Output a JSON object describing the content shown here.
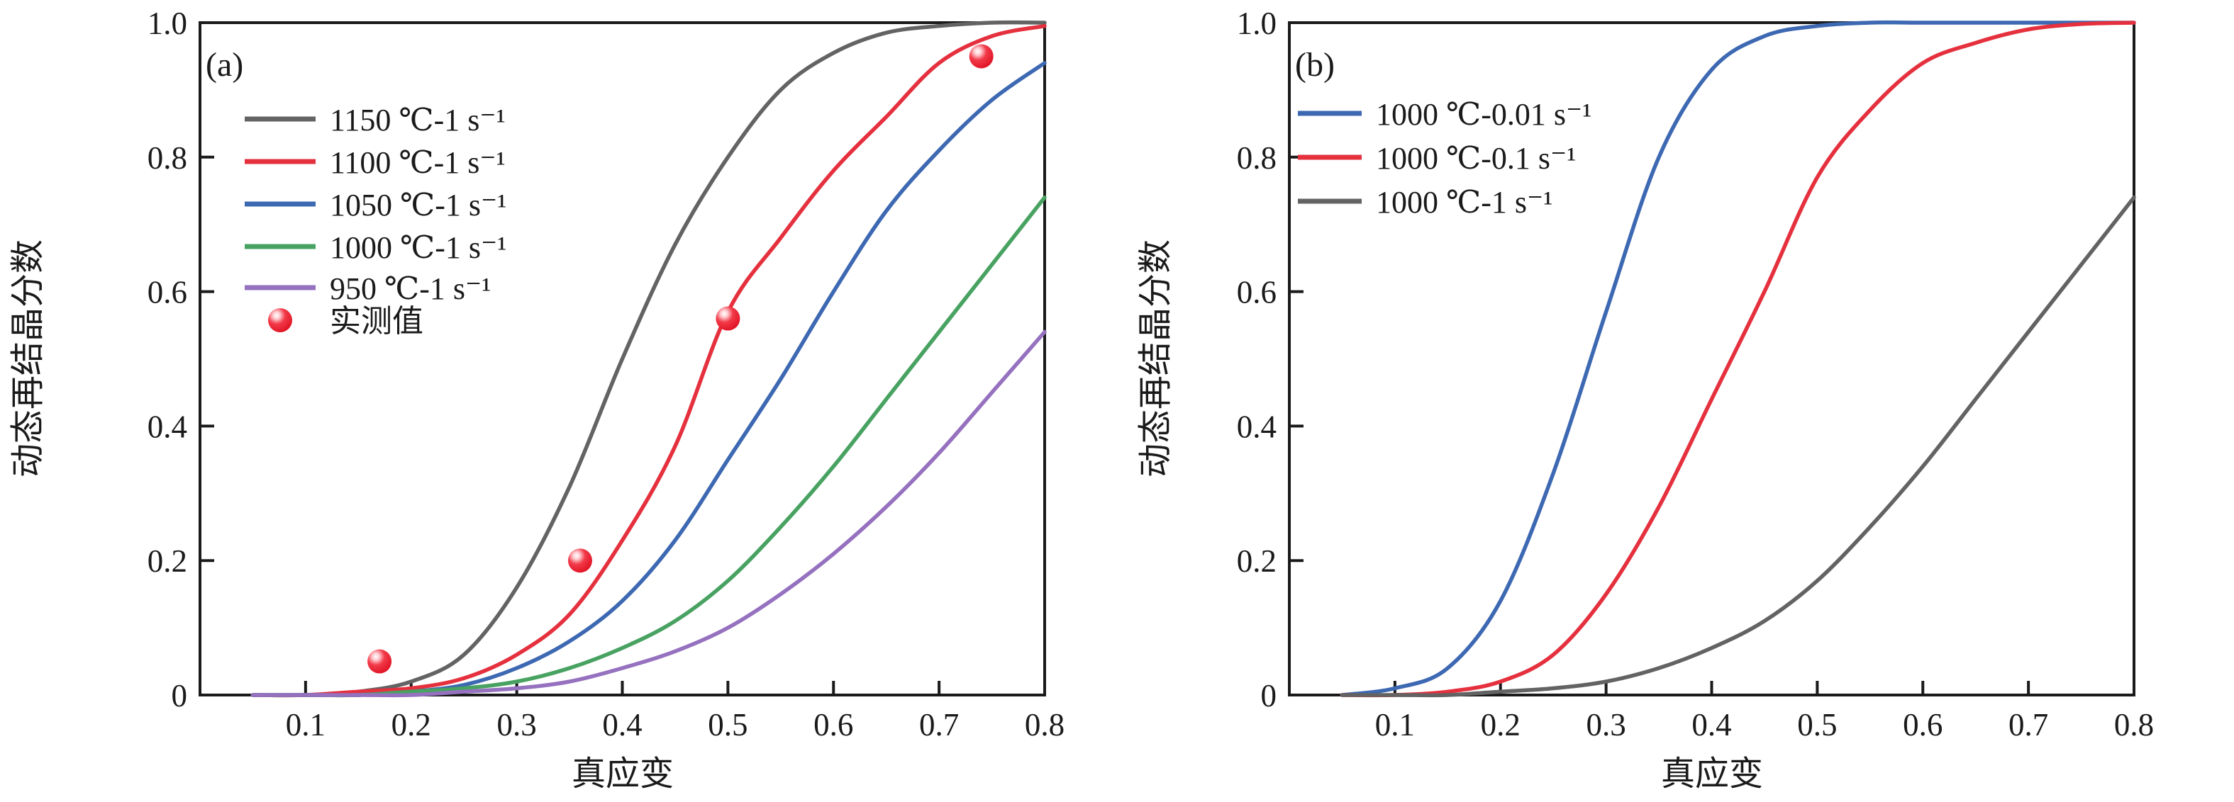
{
  "chart_data": [
    {
      "type": "line",
      "panel_tag": "(a)",
      "xlabel": "真应变",
      "ylabel": "动态再结晶分数",
      "xlim": [
        0,
        0.8
      ],
      "ylim": [
        0,
        1.0
      ],
      "grid": false,
      "legend_position": "upper-left",
      "x_tick_labels": [
        "0.1",
        "0.2",
        "0.3",
        "0.4",
        "0.5",
        "0.6",
        "0.7",
        "0.8"
      ],
      "x_tick_values": [
        0.1,
        0.2,
        0.3,
        0.4,
        0.5,
        0.6,
        0.7,
        0.8
      ],
      "y_tick_labels": [
        "0",
        "0.2",
        "0.4",
        "0.6",
        "0.8",
        "1.0"
      ],
      "y_tick_values": [
        0,
        0.2,
        0.4,
        0.6,
        0.8,
        1.0
      ],
      "x": [
        0.05,
        0.1,
        0.15,
        0.2,
        0.25,
        0.3,
        0.35,
        0.4,
        0.45,
        0.5,
        0.55,
        0.6,
        0.65,
        0.7,
        0.75,
        0.8
      ],
      "series": [
        {
          "name": "1150 ℃-1 s⁻¹",
          "color": "#636363",
          "values": [
            0,
            0,
            0.005,
            0.02,
            0.06,
            0.16,
            0.31,
            0.5,
            0.67,
            0.8,
            0.9,
            0.955,
            0.985,
            0.995,
            1.0,
            1.0
          ]
        },
        {
          "name": "1100 ℃-1 s⁻¹",
          "color": "#e5303e",
          "values": [
            0,
            0,
            0.005,
            0.01,
            0.025,
            0.06,
            0.12,
            0.23,
            0.37,
            0.57,
            0.68,
            0.78,
            0.86,
            0.94,
            0.98,
            0.995
          ]
        },
        {
          "name": "1050 ℃-1 s⁻¹",
          "color": "#3d68b2",
          "values": [
            0,
            0,
            0,
            0.005,
            0.015,
            0.04,
            0.08,
            0.14,
            0.23,
            0.35,
            0.47,
            0.6,
            0.72,
            0.81,
            0.885,
            0.94
          ]
        },
        {
          "name": "1000 ℃-1 s⁻¹",
          "color": "#48a261",
          "values": [
            0,
            0,
            0,
            0.005,
            0.01,
            0.02,
            0.04,
            0.07,
            0.11,
            0.17,
            0.25,
            0.34,
            0.44,
            0.54,
            0.64,
            0.74
          ]
        },
        {
          "name": "950 ℃-1 s⁻¹",
          "color": "#9571bf",
          "values": [
            0,
            0,
            0,
            0,
            0.005,
            0.01,
            0.02,
            0.04,
            0.065,
            0.1,
            0.15,
            0.21,
            0.28,
            0.36,
            0.45,
            0.54
          ]
        }
      ],
      "scatter": {
        "name": "实测值",
        "color": "#ec1525",
        "points": [
          [
            0.17,
            0.05
          ],
          [
            0.36,
            0.2
          ],
          [
            0.5,
            0.56
          ],
          [
            0.74,
            0.95
          ]
        ]
      }
    },
    {
      "type": "line",
      "panel_tag": "(b)",
      "xlabel": "真应变",
      "ylabel": "动态再结晶分数",
      "xlim": [
        0,
        0.8
      ],
      "ylim": [
        0,
        1.0
      ],
      "grid": false,
      "legend_position": "upper-left",
      "x_tick_labels": [
        "0.1",
        "0.2",
        "0.3",
        "0.4",
        "0.5",
        "0.6",
        "0.7",
        "0.8"
      ],
      "x_tick_values": [
        0.1,
        0.2,
        0.3,
        0.4,
        0.5,
        0.6,
        0.7,
        0.8
      ],
      "y_tick_labels": [
        "0",
        "0.2",
        "0.4",
        "0.6",
        "0.8",
        "1.0"
      ],
      "y_tick_values": [
        0,
        0.2,
        0.4,
        0.6,
        0.8,
        1.0
      ],
      "x": [
        0.05,
        0.1,
        0.15,
        0.2,
        0.25,
        0.3,
        0.35,
        0.4,
        0.45,
        0.5,
        0.55,
        0.6,
        0.65,
        0.7,
        0.75,
        0.8
      ],
      "series": [
        {
          "name": "1000 ℃-0.01 s⁻¹",
          "color": "#3d68b2",
          "values": [
            0,
            0.01,
            0.04,
            0.14,
            0.33,
            0.57,
            0.8,
            0.93,
            0.98,
            0.995,
            1.0,
            1.0,
            1.0,
            1.0,
            1.0,
            1.0
          ]
        },
        {
          "name": "1000 ℃-0.1 s⁻¹",
          "color": "#e5303e",
          "values": [
            0,
            0,
            0.005,
            0.02,
            0.06,
            0.15,
            0.28,
            0.44,
            0.6,
            0.77,
            0.87,
            0.94,
            0.97,
            0.99,
            0.998,
            1.0
          ]
        },
        {
          "name": "1000 ℃-1 s⁻¹",
          "color": "#636363",
          "values": [
            0,
            0,
            0,
            0.005,
            0.01,
            0.02,
            0.04,
            0.07,
            0.11,
            0.17,
            0.25,
            0.34,
            0.44,
            0.54,
            0.64,
            0.74
          ]
        }
      ]
    }
  ]
}
